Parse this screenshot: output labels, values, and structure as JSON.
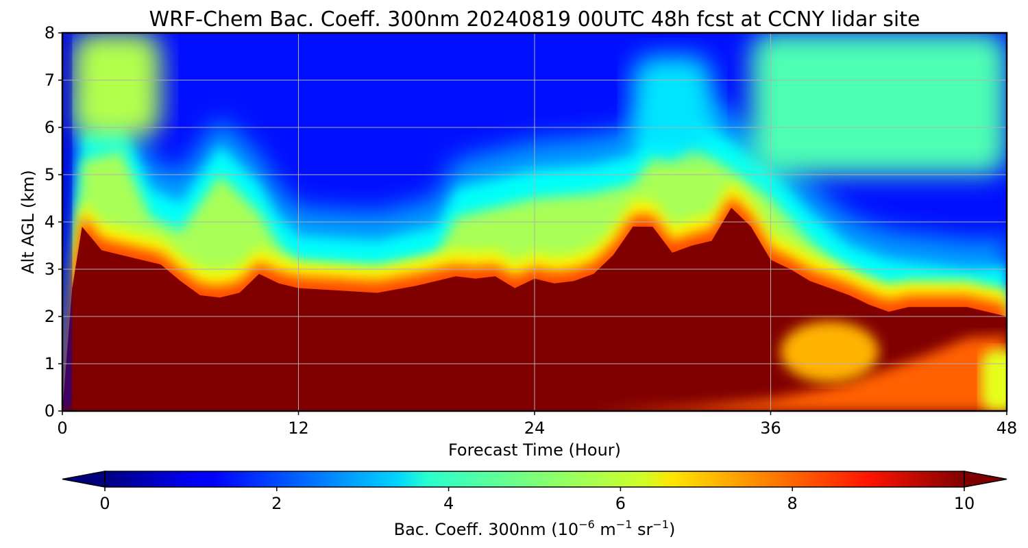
{
  "chart_data": {
    "type": "heatmap",
    "title": "WRF-Chem Bac. Coeff. 300nm  20240819 00UTC 48h fcst at CCNY lidar site",
    "xlabel": "Forecast Time (Hour)",
    "ylabel": "Alt AGL (km)",
    "xlim": [
      0,
      48
    ],
    "ylim": [
      0,
      8
    ],
    "xticks": [
      "0",
      "12",
      "24",
      "36",
      "48"
    ],
    "yticks": [
      "0",
      "1",
      "2",
      "3",
      "4",
      "5",
      "6",
      "7",
      "8"
    ],
    "grid": true,
    "colormap": "jet",
    "colorbar": {
      "label_main": "Bac. Coeff. 300nm  (10",
      "label_exp1": "−6",
      "label_unit1": " m",
      "label_exp2": "−1",
      "label_unit2": " sr",
      "label_exp3": "−1",
      "label_close": ")",
      "range": [
        0,
        10
      ],
      "ticks": [
        "0",
        "2",
        "4",
        "6",
        "8",
        "10"
      ],
      "extend": "both",
      "orientation": "horizontal"
    },
    "features": {
      "saturated_layer_top_km": {
        "t": [
          0,
          0.5,
          1,
          2,
          4,
          5,
          6,
          7,
          8,
          9,
          10,
          11,
          12,
          14,
          16,
          18,
          20,
          21,
          22,
          23,
          24,
          25,
          26,
          27,
          28,
          29,
          30,
          31,
          32,
          33,
          34,
          35,
          36,
          37,
          38,
          39,
          40,
          41,
          42,
          43,
          44,
          45,
          46,
          47,
          48
        ],
        "km": [
          0,
          2.6,
          3.9,
          3.4,
          3.2,
          3.1,
          2.75,
          2.45,
          2.4,
          2.5,
          2.9,
          2.7,
          2.6,
          2.55,
          2.5,
          2.65,
          2.85,
          2.8,
          2.85,
          2.6,
          2.8,
          2.7,
          2.75,
          2.9,
          3.3,
          3.9,
          3.9,
          3.35,
          3.5,
          3.6,
          4.3,
          3.9,
          3.2,
          3.0,
          2.75,
          2.6,
          2.45,
          2.25,
          2.1,
          2.2,
          2.2,
          2.2,
          2.2,
          2.1,
          2.0
        ]
      },
      "mid_layer_top_km": {
        "t": [
          0,
          1,
          3,
          4.5,
          6,
          8,
          10,
          11,
          12,
          16,
          19,
          20,
          22,
          24,
          27,
          29,
          30,
          31,
          32,
          34,
          36,
          38,
          40,
          42,
          44,
          46,
          47,
          48
        ],
        "km": [
          0,
          5.6,
          5.8,
          4.4,
          4.1,
          5.3,
          4.5,
          3.8,
          3.4,
          3.3,
          3.6,
          4.4,
          4.6,
          4.8,
          4.9,
          5.1,
          5.7,
          5.6,
          5.9,
          5.4,
          4.8,
          3.9,
          3.2,
          2.9,
          2.8,
          2.7,
          2.7,
          2.8
        ]
      },
      "upper_aerosol_patches": [
        {
          "t_range": [
            0.5,
            5
          ],
          "km_range": [
            5.8,
            8
          ],
          "value": 5.5
        },
        {
          "t_range": [
            35,
            48
          ],
          "km_range": [
            5,
            8
          ],
          "value": 4.5
        },
        {
          "t_range": [
            29,
            33
          ],
          "km_range": [
            5.5,
            7.5
          ],
          "value": 3.5
        }
      ],
      "near_surface_reduced": {
        "t_range": [
          27,
          48
        ],
        "km_range": [
          0,
          1.6
        ],
        "value": 7.8
      },
      "elevated_pocket": {
        "t_range": [
          36.5,
          41.5
        ],
        "km_range": [
          0.6,
          1.9
        ],
        "value": 7.0
      },
      "surface_edge_48h": {
        "t_range": [
          46,
          48
        ],
        "km_range": [
          0,
          1.3
        ],
        "value": 6.0
      }
    }
  }
}
